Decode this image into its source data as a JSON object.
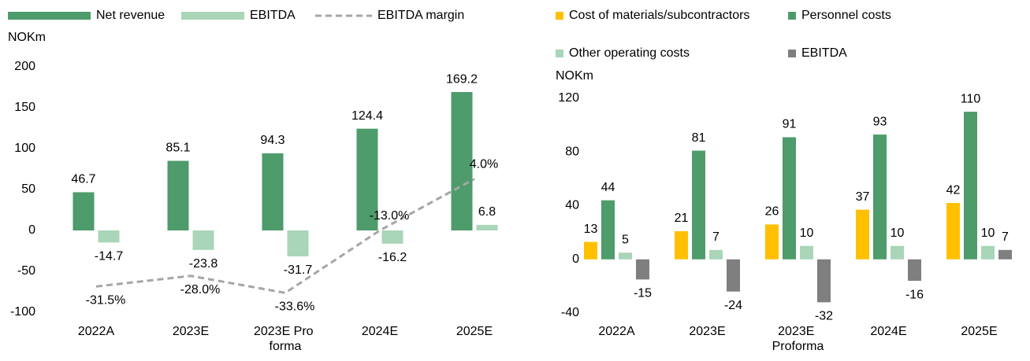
{
  "chart_data": [
    {
      "type": "bar",
      "y_label": "NOKm",
      "categories": [
        "2022A",
        "2023E",
        "2023E Pro forma",
        "2024E",
        "2025E"
      ],
      "series": [
        {
          "name": "Net revenue",
          "color": "#4e9b6b",
          "values": [
            46.7,
            85.1,
            94.3,
            124.4,
            169.2
          ]
        },
        {
          "name": "EBITDA",
          "color": "#a9d5b8",
          "values": [
            -14.7,
            -23.8,
            -31.7,
            -16.2,
            6.8
          ]
        },
        {
          "name": "EBITDA margin",
          "color": "#a6a6a6",
          "type": "line",
          "dashed": true,
          "axis": "y2",
          "values": [
            -31.5,
            -28.0,
            -33.6,
            -13.0,
            4.0
          ],
          "value_labels": [
            "-31.5%",
            "-28.0%",
            "-33.6%",
            "-13.0%",
            "4.0%"
          ]
        }
      ],
      "ylim": [
        -100,
        200
      ],
      "yticks": [
        200,
        150,
        100,
        50,
        0,
        -50,
        -100
      ],
      "y2lim": [
        -40,
        41
      ],
      "grid": false
    },
    {
      "type": "bar",
      "y_label": "NOKm",
      "categories": [
        "2022A",
        "2023E",
        "2023E Proforma",
        "2024E",
        "2025E"
      ],
      "series": [
        {
          "name": "Cost of materials/subcontractors",
          "color": "#ffc000",
          "values": [
            13,
            21,
            26,
            37,
            42
          ]
        },
        {
          "name": "Personnel costs",
          "color": "#4e9b6b",
          "values": [
            44,
            81,
            91,
            93,
            110
          ]
        },
        {
          "name": "Other operating costs",
          "color": "#a9d5b8",
          "values": [
            5,
            7,
            10,
            10,
            10
          ]
        },
        {
          "name": "EBITDA",
          "color": "#7f7f7f",
          "values": [
            -15,
            -24,
            -32,
            -16,
            7
          ]
        }
      ],
      "ylim": [
        -40,
        120
      ],
      "yticks": [
        120,
        80,
        40,
        0,
        -40
      ],
      "grid": false
    }
  ]
}
